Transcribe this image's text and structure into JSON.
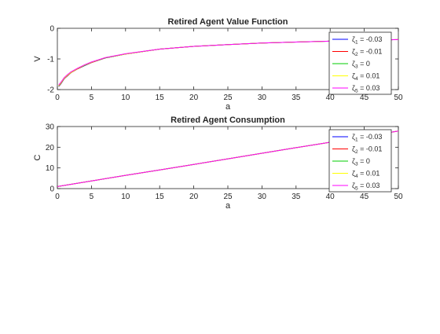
{
  "chart_data": [
    {
      "type": "line",
      "title": "Retired Agent Value Function",
      "xlabel": "a",
      "ylabel": "V",
      "xlim": [
        0,
        50
      ],
      "ylim": [
        -2,
        0
      ],
      "xticks": [
        0,
        5,
        10,
        15,
        20,
        25,
        30,
        35,
        40,
        45,
        50
      ],
      "yticks": [
        -2,
        -1,
        0
      ],
      "grid": false,
      "legend_position": "top-right",
      "x": [
        0.2,
        0.5,
        1,
        1.5,
        2,
        3,
        4,
        5,
        7,
        10,
        15,
        20,
        25,
        30,
        35,
        40,
        45,
        50
      ],
      "series": [
        {
          "name": "ζ_1 = -0.03",
          "color": "#0000ff",
          "values": [
            -1.9,
            -1.82,
            -1.65,
            -1.55,
            -1.45,
            -1.32,
            -1.22,
            -1.12,
            -0.97,
            -0.84,
            -0.68,
            -0.59,
            -0.53,
            -0.48,
            -0.45,
            -0.42,
            -0.39,
            -0.37
          ]
        },
        {
          "name": "ζ_2 = -0.01",
          "color": "#ff0000",
          "values": [
            -1.89,
            -1.81,
            -1.64,
            -1.54,
            -1.45,
            -1.32,
            -1.21,
            -1.12,
            -0.97,
            -0.84,
            -0.68,
            -0.59,
            -0.53,
            -0.48,
            -0.45,
            -0.42,
            -0.39,
            -0.37
          ]
        },
        {
          "name": "ζ_3 = 0",
          "color": "#00cc00",
          "values": [
            -1.88,
            -1.8,
            -1.63,
            -1.53,
            -1.44,
            -1.31,
            -1.21,
            -1.11,
            -0.97,
            -0.84,
            -0.68,
            -0.59,
            -0.53,
            -0.48,
            -0.45,
            -0.42,
            -0.39,
            -0.37
          ]
        },
        {
          "name": "ζ_4 = 0.01",
          "color": "#ffff00",
          "values": [
            -1.87,
            -1.79,
            -1.63,
            -1.53,
            -1.44,
            -1.31,
            -1.2,
            -1.11,
            -0.96,
            -0.84,
            -0.68,
            -0.59,
            -0.53,
            -0.48,
            -0.45,
            -0.42,
            -0.39,
            -0.37
          ]
        },
        {
          "name": "ζ_5 = 0.03",
          "color": "#ff00ff",
          "values": [
            -1.85,
            -1.77,
            -1.61,
            -1.51,
            -1.42,
            -1.3,
            -1.19,
            -1.1,
            -0.96,
            -0.83,
            -0.68,
            -0.59,
            -0.53,
            -0.48,
            -0.45,
            -0.42,
            -0.39,
            -0.37
          ]
        }
      ]
    },
    {
      "type": "line",
      "title": "Retired Agent Consumption",
      "xlabel": "a",
      "ylabel": "C",
      "xlim": [
        0,
        50
      ],
      "ylim": [
        0,
        30
      ],
      "xticks": [
        0,
        5,
        10,
        15,
        20,
        25,
        30,
        35,
        40,
        45,
        50
      ],
      "yticks": [
        0,
        10,
        20,
        30
      ],
      "grid": false,
      "legend_position": "top-right",
      "x": [
        0,
        5,
        10,
        15,
        20,
        25,
        30,
        35,
        40,
        45,
        50
      ],
      "series": [
        {
          "name": "ζ_1 = -0.03",
          "color": "#0000ff",
          "values": [
            1.0,
            3.7,
            6.4,
            9.0,
            11.7,
            14.4,
            17.1,
            19.8,
            22.4,
            25.1,
            27.8
          ]
        },
        {
          "name": "ζ_2 = -0.01",
          "color": "#ff0000",
          "values": [
            1.0,
            3.7,
            6.4,
            9.0,
            11.7,
            14.4,
            17.1,
            19.8,
            22.4,
            25.1,
            27.8
          ]
        },
        {
          "name": "ζ_3 = 0",
          "color": "#00cc00",
          "values": [
            1.0,
            3.7,
            6.4,
            9.0,
            11.7,
            14.4,
            17.1,
            19.8,
            22.4,
            25.1,
            27.8
          ]
        },
        {
          "name": "ζ_4 = 0.01",
          "color": "#ffff00",
          "values": [
            1.0,
            3.7,
            6.4,
            9.0,
            11.7,
            14.4,
            17.1,
            19.8,
            22.4,
            25.1,
            27.8
          ]
        },
        {
          "name": "ζ_5 = 0.03",
          "color": "#ff00ff",
          "values": [
            1.0,
            3.7,
            6.4,
            9.0,
            11.7,
            14.4,
            17.1,
            19.8,
            22.4,
            25.1,
            27.8
          ]
        }
      ]
    }
  ],
  "legend": {
    "entries": [
      {
        "symbol": "ζ",
        "sub": "1",
        "value": "= -0.03"
      },
      {
        "symbol": "ζ",
        "sub": "2",
        "value": "= -0.01"
      },
      {
        "symbol": "ζ",
        "sub": "3",
        "value": "= 0"
      },
      {
        "symbol": "ζ",
        "sub": "4",
        "value": "= 0.01"
      },
      {
        "symbol": "ζ",
        "sub": "5",
        "value": "= 0.03"
      }
    ]
  }
}
